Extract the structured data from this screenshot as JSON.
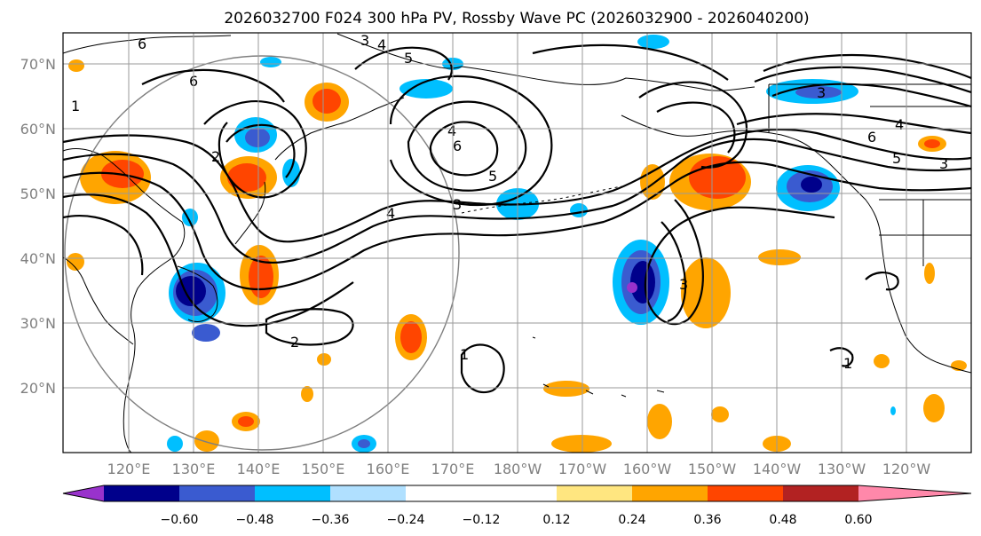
{
  "map": {
    "title": "2026032700 F024 300 hPa PV, Rossby Wave PC (2026032900 - 2026040200)",
    "lat_labels": [
      "70°N",
      "60°N",
      "50°N",
      "40°N",
      "30°N",
      "20°N"
    ],
    "lon_labels": [
      "120°E",
      "130°E",
      "140°E",
      "150°E",
      "160°E",
      "170°E",
      "180°W",
      "170°W",
      "160°W",
      "150°W",
      "140°W",
      "130°W",
      "120°W"
    ],
    "contour_labels": [
      "6",
      "3",
      "4",
      "5",
      "6",
      "2",
      "4",
      "3",
      "5",
      "6",
      "4",
      "3",
      "2",
      "1",
      "3",
      "1",
      "1",
      "4",
      "6",
      "5",
      "3"
    ],
    "colorbar": {
      "ticks": [
        "−0.60",
        "−0.48",
        "−0.36",
        "−0.24",
        "−0.12",
        "0.12",
        "0.24",
        "0.36",
        "0.48",
        "0.60"
      ],
      "colors": [
        "#9932cc",
        "#00008b",
        "#3a5bd0",
        "#00bfff",
        "#b0e0ff",
        "#ffffff",
        "#ffe680",
        "#ffa500",
        "#ff4500",
        "#b22222",
        "#ff88aa"
      ]
    }
  }
}
